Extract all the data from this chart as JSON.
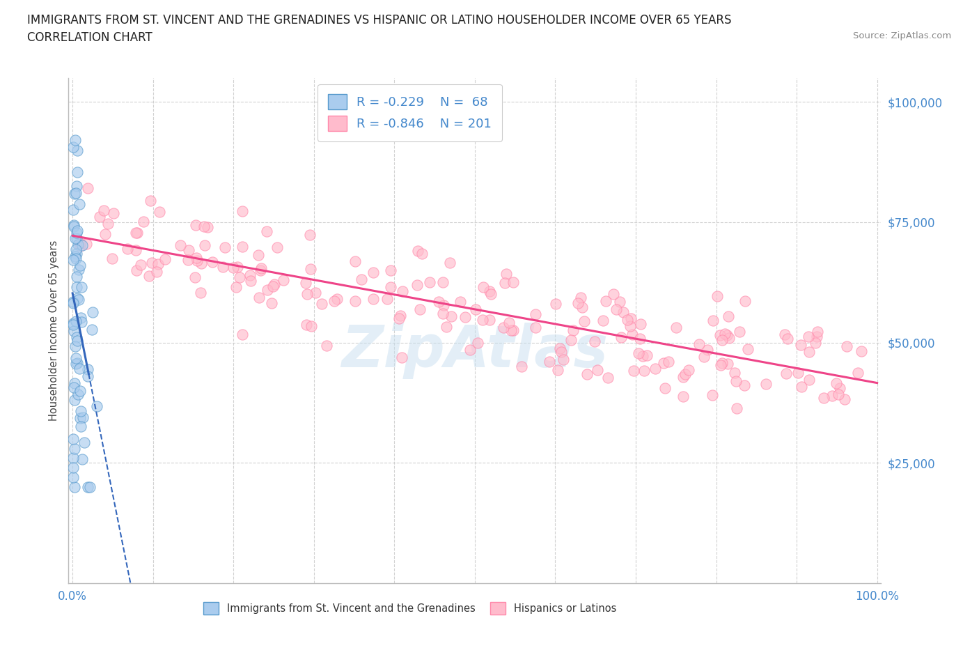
{
  "title_line1": "IMMIGRANTS FROM ST. VINCENT AND THE GRENADINES VS HISPANIC OR LATINO HOUSEHOLDER INCOME OVER 65 YEARS",
  "title_line2": "CORRELATION CHART",
  "source": "Source: ZipAtlas.com",
  "ylabel": "Householder Income Over 65 years",
  "blue_R": -0.229,
  "blue_N": 68,
  "pink_R": -0.846,
  "pink_N": 201,
  "blue_face_color": "#aaccee",
  "blue_edge_color": "#5599cc",
  "pink_face_color": "#ffbbcc",
  "pink_edge_color": "#ff88aa",
  "blue_line_color": "#3366bb",
  "pink_line_color": "#ee4488",
  "watermark_color": "#c8dff0",
  "legend_label_blue": "Immigrants from St. Vincent and the Grenadines",
  "legend_label_pink": "Hispanics or Latinos",
  "ylim": [
    0,
    105000
  ],
  "xlim": [
    -0.005,
    1.005
  ],
  "ytick_vals": [
    25000,
    50000,
    75000,
    100000
  ],
  "xtick_vals": [
    0.0,
    0.1,
    0.2,
    0.3,
    0.4,
    0.5,
    0.6,
    0.7,
    0.8,
    0.9,
    1.0
  ],
  "blue_seed": 7,
  "pink_seed": 99,
  "axis_label_color": "#4488cc",
  "title_fontsize": 12,
  "legend_fontsize": 13
}
